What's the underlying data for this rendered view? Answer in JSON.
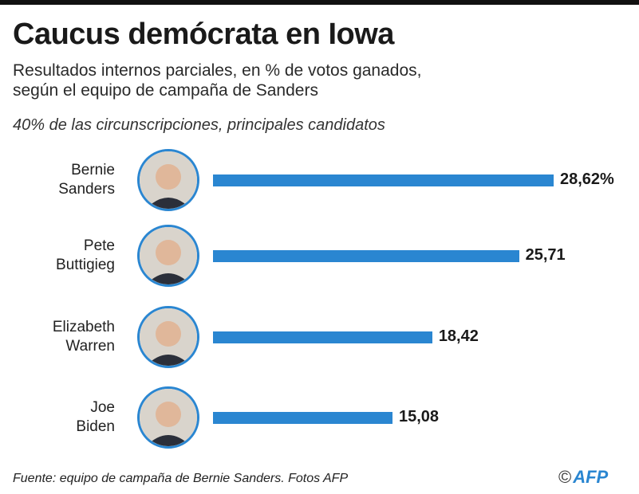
{
  "title": "Caucus demócrata en Iowa",
  "subtitle_line1": "Resultados internos parciales, en % de votos ganados,",
  "subtitle_line2": "según el equipo de campaña de Sanders",
  "note": "40% de las circunscripciones, principales candidatos",
  "source": "Fuente: equipo de campaña de Bernie Sanders. Fotos AFP",
  "logo": {
    "copyright": "©",
    "text": "AFP"
  },
  "colors": {
    "bar": "#2a86d1",
    "text": "#1a1a1a"
  },
  "chart_data": {
    "type": "bar",
    "orientation": "horizontal",
    "categories": [
      [
        "Bernie",
        "Sanders"
      ],
      [
        "Pete",
        "Buttigieg"
      ],
      [
        "Elizabeth",
        "Warren"
      ],
      [
        "Joe",
        "Biden"
      ]
    ],
    "values": [
      28.62,
      25.71,
      18.42,
      15.08
    ],
    "value_labels": [
      "28,62%",
      "25,71",
      "18,42",
      "15,08"
    ],
    "grid": false
  }
}
